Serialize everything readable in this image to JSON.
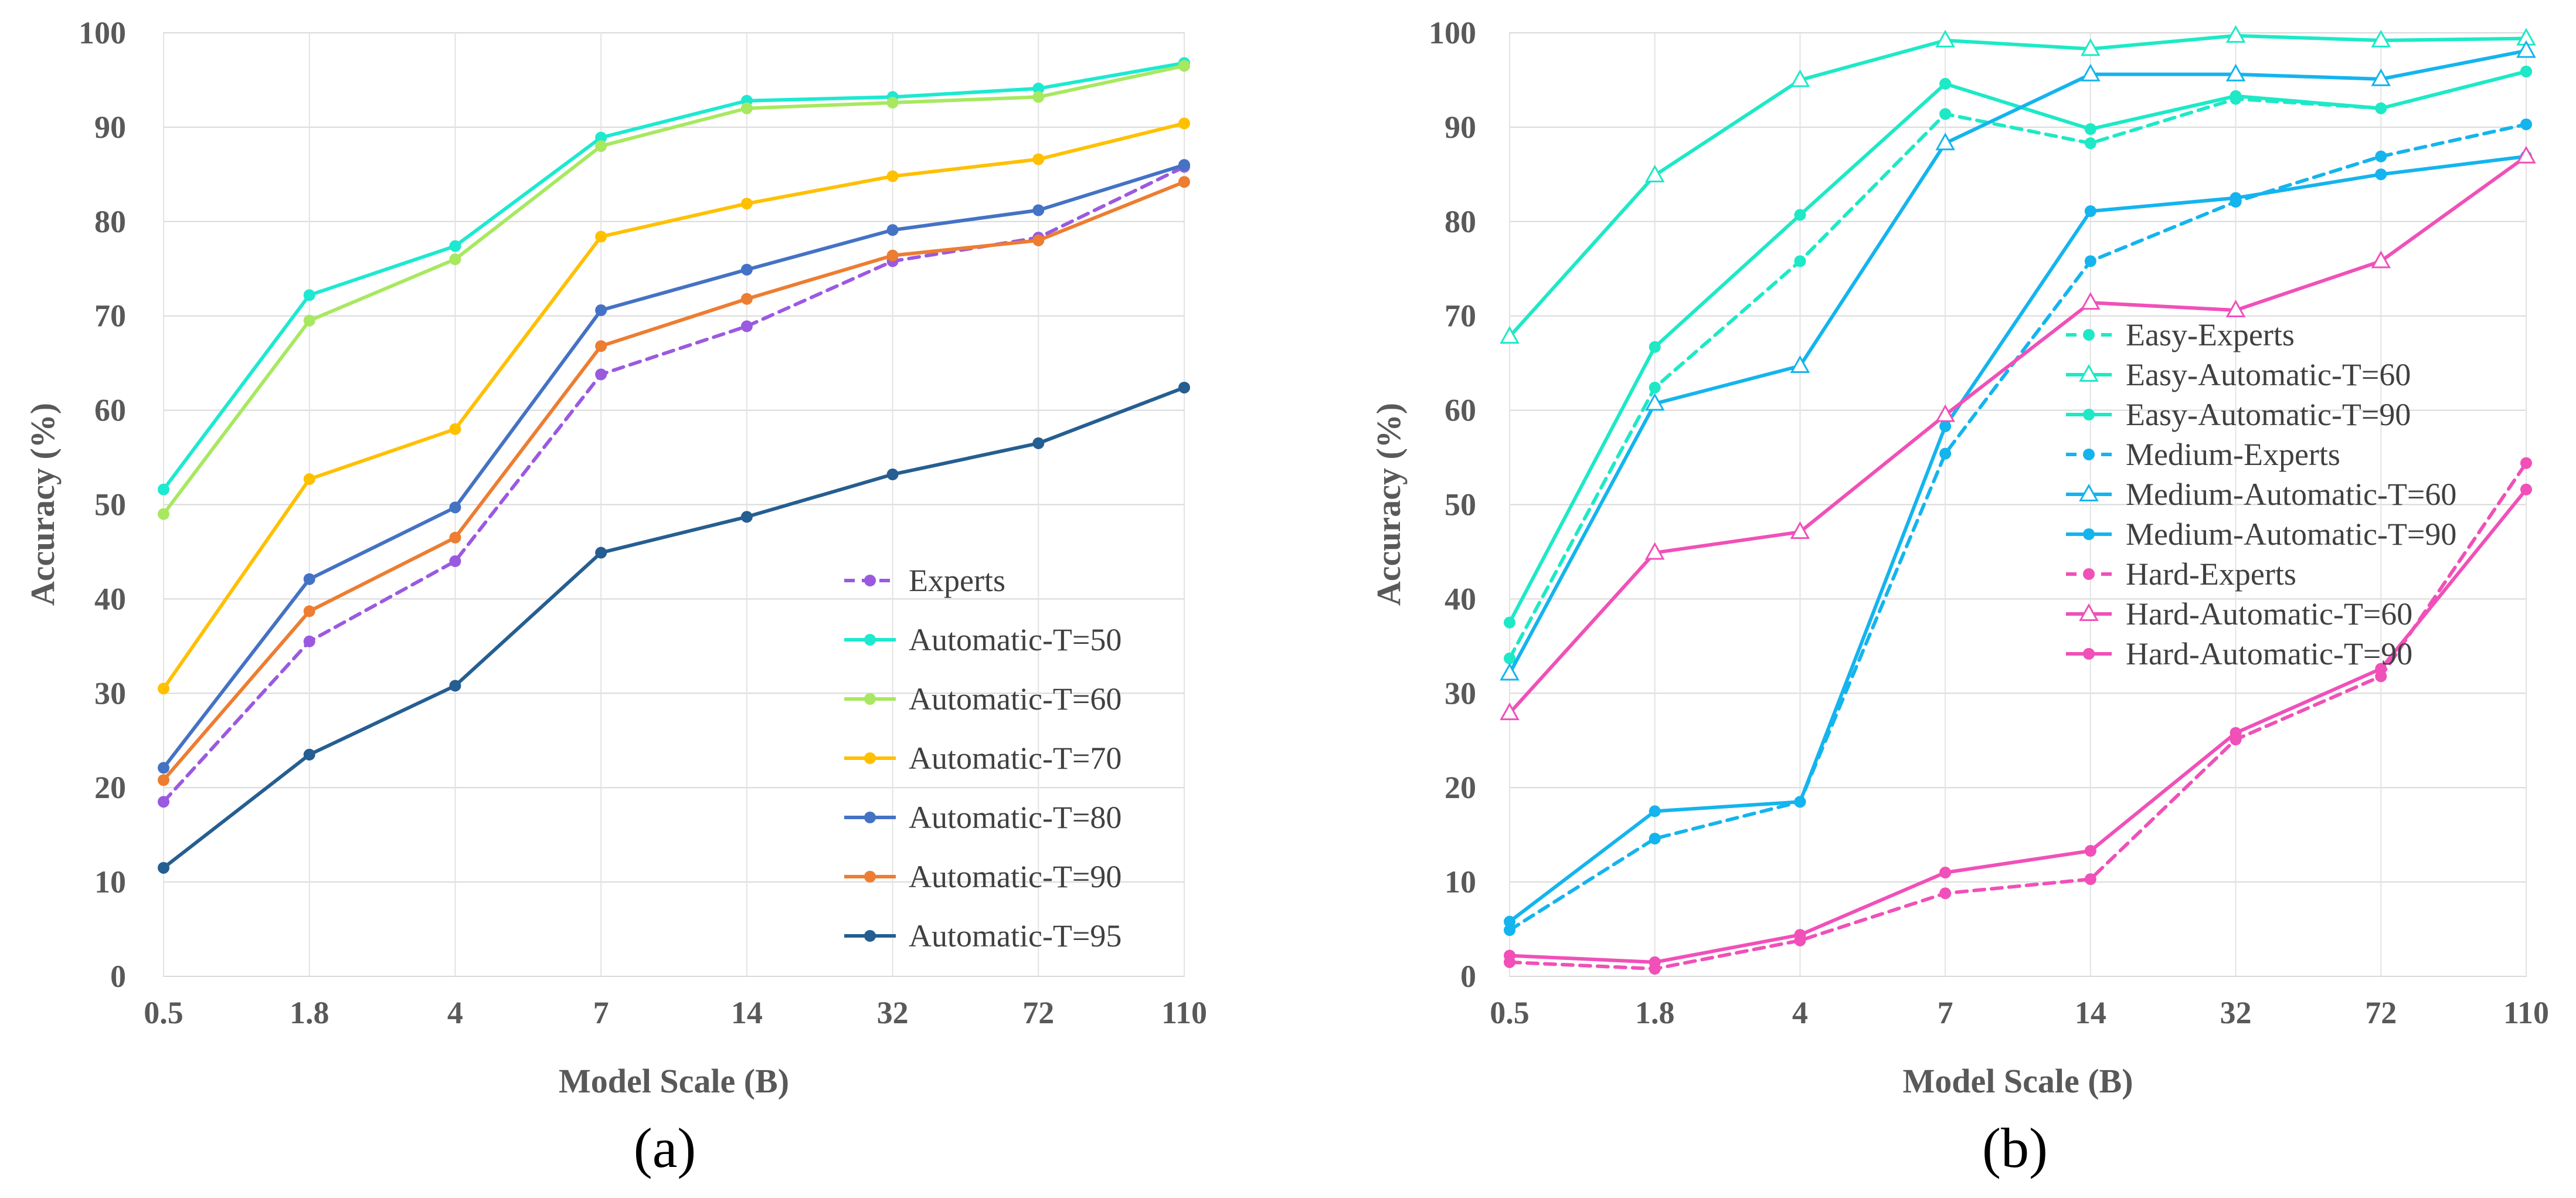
{
  "chart_data": [
    {
      "type": "line",
      "panel_label": "(a)",
      "xlabel": "Model Scale (B)",
      "ylabel": "Accuracy (%)",
      "categories": [
        "0.5",
        "1.8",
        "4",
        "7",
        "14",
        "32",
        "72",
        "110"
      ],
      "yticks": [
        "0",
        "10",
        "20",
        "30",
        "40",
        "50",
        "60",
        "70",
        "80",
        "90",
        "100"
      ],
      "ylim": [
        0,
        100
      ],
      "grid": true,
      "legend_position": "bottom-right",
      "series": [
        {
          "name": "Experts",
          "color": "#9B59E0",
          "dash": true,
          "marker": "circle",
          "values": [
            18.5,
            35.5,
            44.0,
            63.8,
            68.9,
            75.8,
            78.3,
            85.8
          ]
        },
        {
          "name": "Automatic-T=50",
          "color": "#1DE9D0",
          "dash": false,
          "marker": "circle",
          "values": [
            51.6,
            72.2,
            77.4,
            88.9,
            92.8,
            93.2,
            94.1,
            96.8
          ]
        },
        {
          "name": "Automatic-T=60",
          "color": "#A8E860",
          "dash": false,
          "marker": "circle",
          "values": [
            49.0,
            69.5,
            76.0,
            88.0,
            92.0,
            92.6,
            93.2,
            96.5
          ]
        },
        {
          "name": "Automatic-T=70",
          "color": "#FFC000",
          "dash": false,
          "marker": "circle",
          "values": [
            30.5,
            52.7,
            58.0,
            78.4,
            81.9,
            84.8,
            86.6,
            90.4
          ]
        },
        {
          "name": "Automatic-T=80",
          "color": "#4472C4",
          "dash": false,
          "marker": "circle",
          "values": [
            22.1,
            42.1,
            49.7,
            70.6,
            74.9,
            79.1,
            81.2,
            86.0
          ]
        },
        {
          "name": "Automatic-T=90",
          "color": "#ED7D31",
          "dash": false,
          "marker": "circle",
          "values": [
            20.8,
            38.7,
            46.5,
            66.8,
            71.8,
            76.4,
            78.0,
            84.2
          ]
        },
        {
          "name": "Automatic-T=95",
          "color": "#255E91",
          "dash": false,
          "marker": "circle",
          "values": [
            11.5,
            23.5,
            30.8,
            44.9,
            48.7,
            53.2,
            56.5,
            62.4
          ]
        }
      ]
    },
    {
      "type": "line",
      "panel_label": "(b)",
      "xlabel": "Model Scale (B)",
      "ylabel": "Accuracy (%)",
      "categories": [
        "0.5",
        "1.8",
        "4",
        "7",
        "14",
        "32",
        "72",
        "110"
      ],
      "yticks": [
        "0",
        "10",
        "20",
        "30",
        "40",
        "50",
        "60",
        "70",
        "80",
        "90",
        "100"
      ],
      "ylim": [
        0,
        100
      ],
      "grid": true,
      "legend_position": "center-right",
      "series": [
        {
          "name": "Easy-Experts",
          "color": "#1DE9C6",
          "dash": true,
          "marker": "circle",
          "values": [
            33.7,
            62.4,
            75.8,
            91.4,
            88.3,
            93.0,
            92.0,
            95.9
          ]
        },
        {
          "name": "Easy-Automatic-T=60",
          "color": "#1DE9C6",
          "dash": false,
          "marker": "triangle",
          "values": [
            67.8,
            84.9,
            95.0,
            99.2,
            98.3,
            99.7,
            99.2,
            99.4
          ]
        },
        {
          "name": "Easy-Automatic-T=90",
          "color": "#1DE9C6",
          "dash": false,
          "marker": "circle",
          "values": [
            37.5,
            66.7,
            80.7,
            94.6,
            89.8,
            93.3,
            92.0,
            95.9
          ]
        },
        {
          "name": "Medium-Experts",
          "color": "#14B4EE",
          "dash": true,
          "marker": "circle",
          "values": [
            4.9,
            14.6,
            18.5,
            55.4,
            75.8,
            82.1,
            86.9,
            90.3
          ]
        },
        {
          "name": "Medium-Automatic-T=60",
          "color": "#14B4EE",
          "dash": false,
          "marker": "triangle",
          "values": [
            32.1,
            60.7,
            64.7,
            88.3,
            95.6,
            95.6,
            95.1,
            98.1
          ]
        },
        {
          "name": "Medium-Automatic-T=90",
          "color": "#14B4EE",
          "dash": false,
          "marker": "circle",
          "values": [
            5.8,
            17.5,
            18.5,
            58.3,
            81.1,
            82.5,
            85.0,
            86.9
          ]
        },
        {
          "name": "Hard-Experts",
          "color": "#F050B8",
          "dash": true,
          "marker": "circle",
          "values": [
            1.5,
            0.8,
            3.8,
            8.8,
            10.3,
            25.1,
            31.8,
            54.4
          ]
        },
        {
          "name": "Hard-Automatic-T=60",
          "color": "#F050B8",
          "dash": false,
          "marker": "triangle",
          "values": [
            27.9,
            44.9,
            47.1,
            59.5,
            71.4,
            70.6,
            75.8,
            86.9
          ]
        },
        {
          "name": "Hard-Automatic-T=90",
          "color": "#F050B8",
          "dash": false,
          "marker": "circle",
          "values": [
            2.2,
            1.5,
            4.4,
            11.0,
            13.3,
            25.8,
            32.6,
            51.6
          ]
        }
      ]
    }
  ]
}
